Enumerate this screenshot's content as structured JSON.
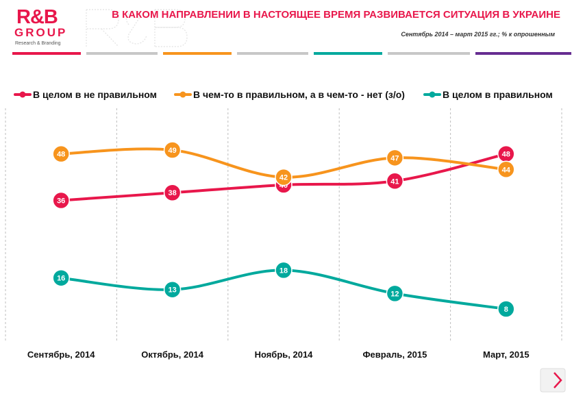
{
  "header": {
    "logo_text": "R&B",
    "logo_group": "GROUP",
    "logo_tagline": "Research & Branding",
    "title": "В КАКОМ НАПРАВЛЕНИИ В НАСТОЯЩЕЕ ВРЕМЯ РАЗВИВАЕТСЯ СИТУАЦИЯ В УКРАИНЕ",
    "subtitle": "Сентябрь 2014 –  март 2015  гг.; % к опрошенным"
  },
  "colors": {
    "brand": "#e8174b",
    "stripes": [
      "#e8174b",
      "#c7c7c7",
      "#f7941d",
      "#c7c7c7",
      "#00a99d",
      "#c7c7c7",
      "#662d91"
    ]
  },
  "icons": {
    "next": "chevron-right-icon"
  },
  "chart_data": {
    "type": "line",
    "categories": [
      "Сентябрь, 2014",
      "Октябрь, 2014",
      "Ноябрь, 2014",
      "Февраль, 2015",
      "Март, 2015"
    ],
    "series": [
      {
        "name": "В целом в не правильном",
        "color": "#e8174b",
        "values": [
          36,
          38,
          40,
          41,
          48
        ]
      },
      {
        "name": "В чем-то в правильном, а в чем-то - нет (з/о)",
        "color": "#f7941d",
        "values": [
          48,
          49,
          42,
          47,
          44
        ]
      },
      {
        "name": "В целом в правильном",
        "color": "#00a99d",
        "values": [
          16,
          13,
          18,
          12,
          8
        ]
      }
    ],
    "legend_position": "top",
    "grid": "vertical dashed",
    "smooth": true
  }
}
